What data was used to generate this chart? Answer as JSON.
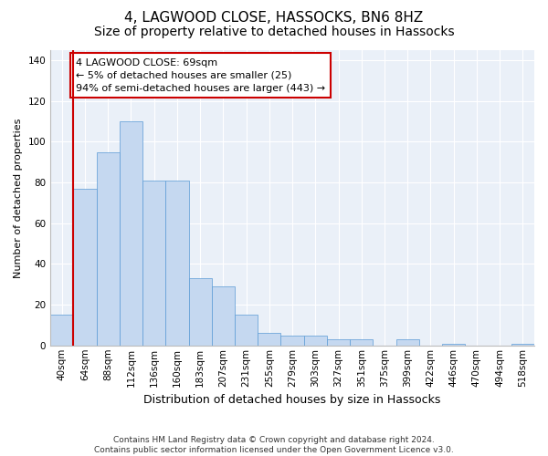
{
  "title": "4, LAGWOOD CLOSE, HASSOCKS, BN6 8HZ",
  "subtitle": "Size of property relative to detached houses in Hassocks",
  "xlabel": "Distribution of detached houses by size in Hassocks",
  "ylabel": "Number of detached properties",
  "bar_color": "#c5d8f0",
  "bar_edge_color": "#5b9bd5",
  "categories": [
    "40sqm",
    "64sqm",
    "88sqm",
    "112sqm",
    "136sqm",
    "160sqm",
    "183sqm",
    "207sqm",
    "231sqm",
    "255sqm",
    "279sqm",
    "303sqm",
    "327sqm",
    "351sqm",
    "375sqm",
    "399sqm",
    "422sqm",
    "446sqm",
    "470sqm",
    "494sqm",
    "518sqm"
  ],
  "values": [
    15,
    77,
    95,
    110,
    81,
    81,
    33,
    29,
    15,
    6,
    5,
    5,
    3,
    3,
    0,
    3,
    0,
    1,
    0,
    0,
    1
  ],
  "vline_x": 0.5,
  "vline_color": "#cc0000",
  "annotation_text": "4 LAGWOOD CLOSE: 69sqm\n← 5% of detached houses are smaller (25)\n94% of semi-detached houses are larger (443) →",
  "annotation_box_color": "#ffffff",
  "annotation_box_edgecolor": "#cc0000",
  "ylim": [
    0,
    145
  ],
  "yticks": [
    0,
    20,
    40,
    60,
    80,
    100,
    120,
    140
  ],
  "bg_color": "#eaf0f8",
  "footer": "Contains HM Land Registry data © Crown copyright and database right 2024.\nContains public sector information licensed under the Open Government Licence v3.0.",
  "title_fontsize": 11,
  "subtitle_fontsize": 10,
  "xlabel_fontsize": 9,
  "ylabel_fontsize": 8,
  "tick_fontsize": 7.5,
  "annotation_fontsize": 8,
  "footer_fontsize": 6.5
}
